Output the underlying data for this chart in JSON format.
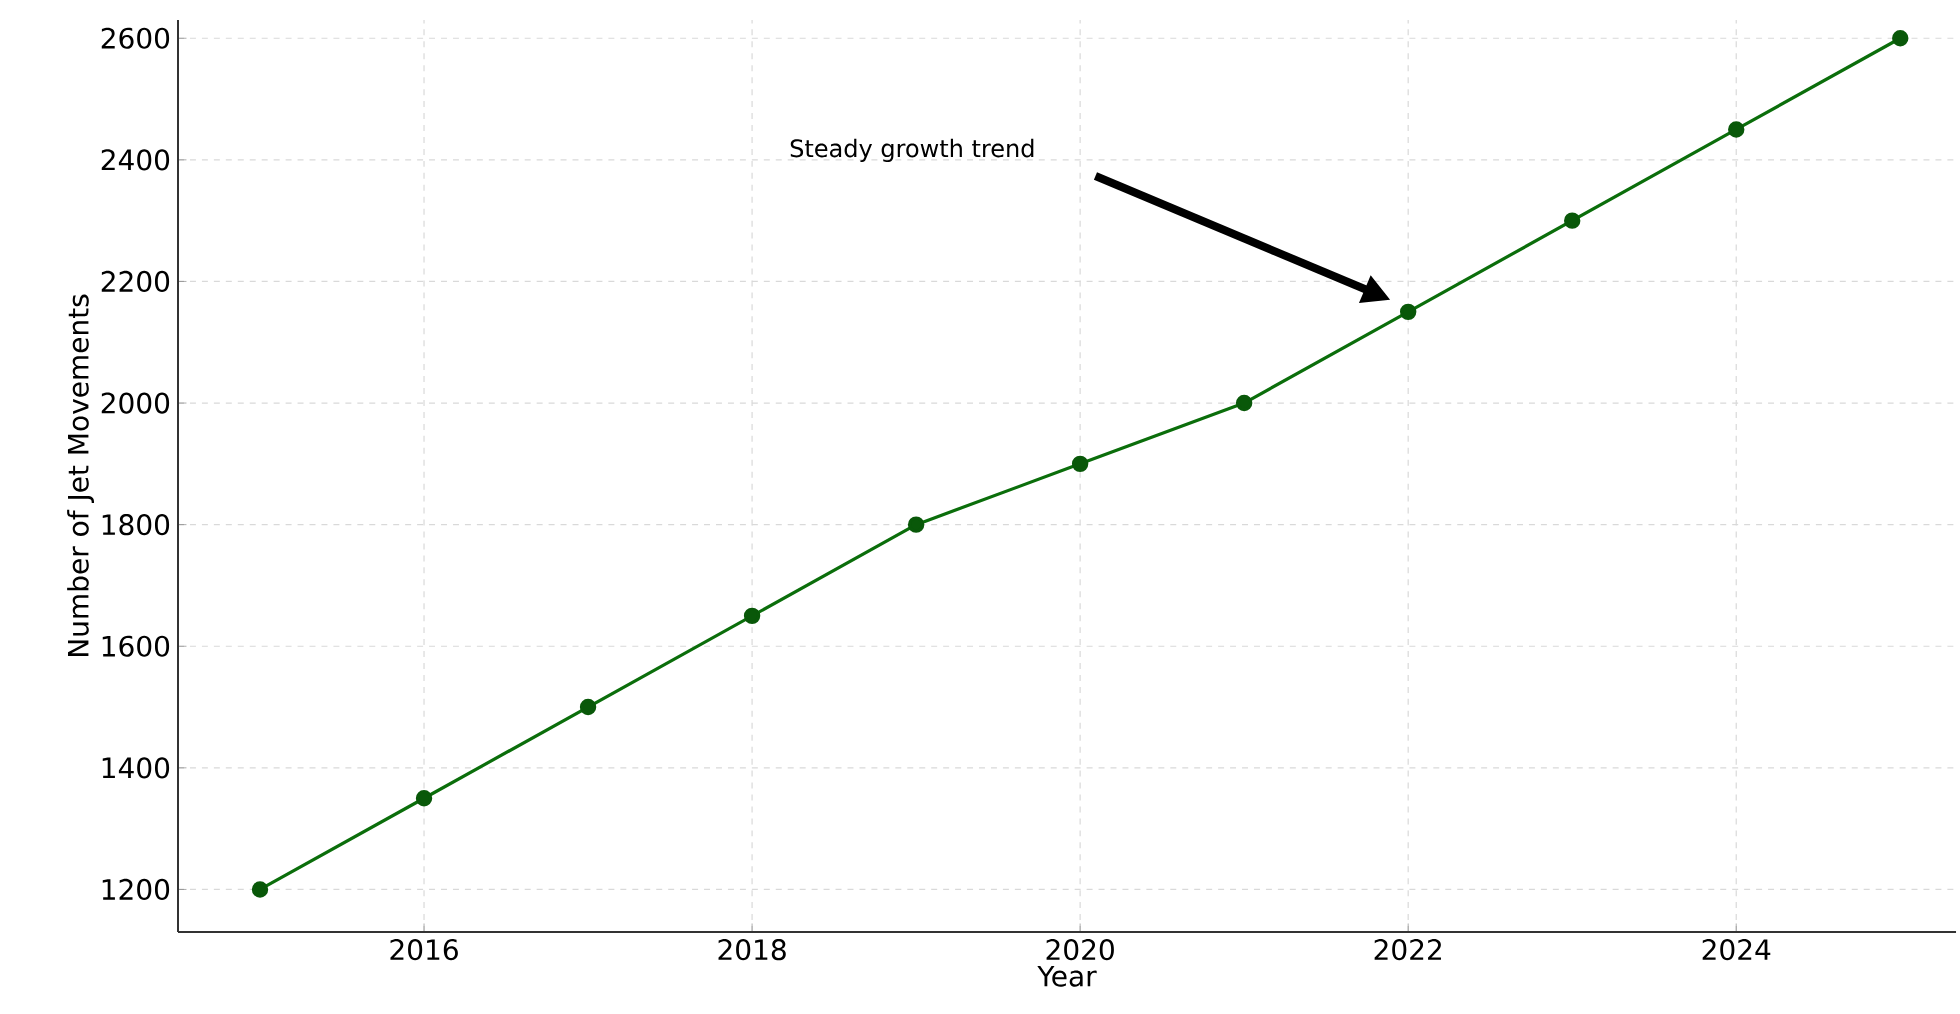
{
  "chart_data": {
    "type": "line",
    "xlabel": "Year",
    "ylabel": "Number of Jet Movements",
    "x": [
      2015,
      2016,
      2017,
      2018,
      2019,
      2020,
      2021,
      2022,
      2023,
      2024,
      2025
    ],
    "values": [
      1200,
      1350,
      1500,
      1650,
      1800,
      1900,
      2000,
      2150,
      2300,
      2450,
      2600
    ],
    "color": "#0b6e0b",
    "marker": "circle",
    "line_style": "solid",
    "grid": true,
    "xlim": [
      2014.5,
      2025.34
    ],
    "ylim": [
      1130,
      2630
    ],
    "xticks": [
      2016,
      2018,
      2020,
      2022,
      2024
    ],
    "yticks": [
      1200,
      1400,
      1600,
      1800,
      2000,
      2200,
      2400,
      2600
    ],
    "annotations": [
      "Steady growth trend"
    ]
  }
}
